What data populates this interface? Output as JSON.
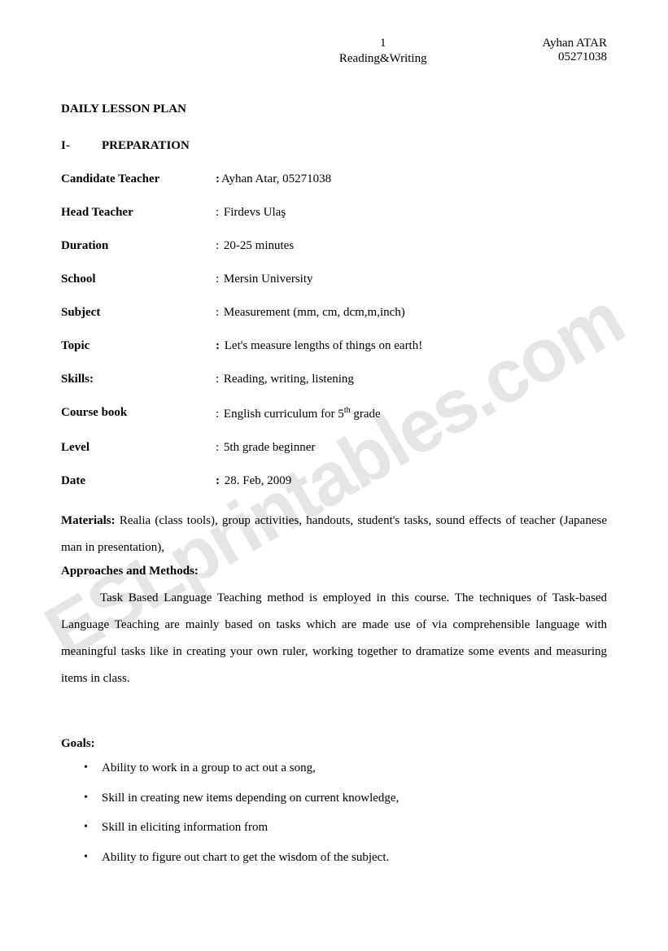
{
  "header": {
    "page_number": "1",
    "subtitle": "Reading&Writing",
    "teacher_name": "Ayhan ATAR",
    "teacher_id": "05271038"
  },
  "title": "DAILY LESSON PLAN",
  "section": {
    "roman": "I-",
    "label": "PREPARATION"
  },
  "fields": {
    "candidate_label": "Candidate Teacher",
    "candidate_value": "Ayhan Atar, 05271038",
    "head_label": "Head Teacher",
    "head_value": "Firdevs Ulaş",
    "duration_label": "Duration",
    "duration_value": "20-25 minutes",
    "school_label": "School",
    "school_value": "Mersin University",
    "subject_label": "Subject",
    "subject_value": "Measurement (mm, cm, dcm,m,inch)",
    "topic_label": "Topic",
    "topic_value": "Let's measure lengths of things on earth!",
    "skills_label": "Skills:",
    "skills_value": "Reading, writing, listening",
    "course_label": "Course book",
    "course_value_prefix": "English curriculum for 5",
    "course_value_sup": "th",
    "course_value_suffix": " grade",
    "level_label": "Level",
    "level_value": "5th grade beginner",
    "date_label": "Date",
    "date_value": "28. Feb, 2009"
  },
  "materials": {
    "label": "Materials:",
    "text": " Realia (class tools), group activities, handouts, student's tasks, sound effects of teacher (Japanese man in presentation),"
  },
  "approaches": {
    "title": "Approaches and Methods:",
    "body": "Task Based Language Teaching method is employed in this course. The techniques of Task-based Language Teaching are mainly based on tasks which are made use of via comprehensible language with meaningful tasks like in creating your own ruler, working together to dramatize some events and measuring items in class."
  },
  "goals": {
    "title": "Goals:",
    "items": [
      "Ability to work in a group to act out a song,",
      "Skill in creating new items depending on current knowledge,",
      "Skill in eliciting information from",
      "Ability to figure out chart to get the wisdom of the subject."
    ]
  },
  "watermark": "ESLprintables.com"
}
